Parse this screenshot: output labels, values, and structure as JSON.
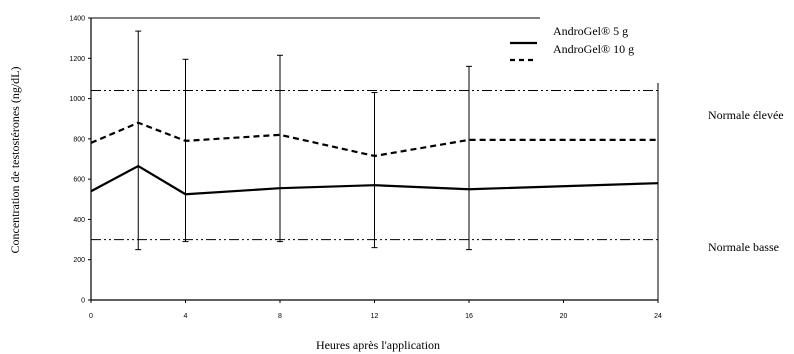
{
  "chart_data": {
    "type": "line",
    "title": "",
    "xlabel": "Heures après l'application",
    "ylabel": "Concentration de testostérones (ng/dL)",
    "xlim": [
      0,
      24
    ],
    "ylim": [
      0,
      1400
    ],
    "xticks": [
      0,
      4,
      8,
      12,
      16,
      20,
      24
    ],
    "yticks": [
      0,
      200,
      400,
      600,
      800,
      1000,
      1200,
      1400
    ],
    "grid": false,
    "legend_position": "top-right",
    "series": [
      {
        "name": "AndroGel® 5 g",
        "style": "solid",
        "x": [
          0,
          2,
          4,
          8,
          12,
          16,
          24
        ],
        "y": [
          540,
          665,
          525,
          555,
          570,
          550,
          580
        ],
        "error_low": [
          null,
          250,
          290,
          290,
          260,
          250,
          null
        ],
        "error_high": [
          null,
          1335,
          1195,
          1215,
          1030,
          1160,
          null
        ]
      },
      {
        "name": "AndroGel® 10 g",
        "style": "dashed",
        "x": [
          0,
          2,
          4,
          8,
          12,
          16,
          24
        ],
        "y": [
          780,
          880,
          790,
          820,
          715,
          795,
          795
        ]
      }
    ],
    "reference_lines": [
      {
        "y": 1040,
        "label": "Normale élevée",
        "style": "dash-dot"
      },
      {
        "y": 300,
        "label": "Normale basse",
        "style": "dash-dot"
      }
    ],
    "colors": {
      "line": "#000000",
      "background": "#ffffff"
    }
  }
}
